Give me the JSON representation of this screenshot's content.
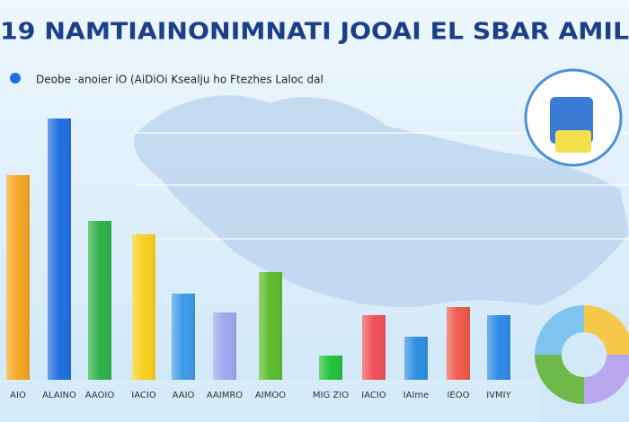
{
  "chart_data": {
    "type": "bar",
    "title": "19 NAMTIAINONIMNATI JOOAI EL SBAR AMIL",
    "subtitle": "Deobe ·anoier iO (AiDiOi Ksealju ho Ftezhes Laloc dal",
    "categories": [
      "AIO",
      "ALAINO",
      "AAOIO",
      "IACIO",
      "AAIO",
      "AAIMRO",
      "AIMOO",
      "MIG ZIO",
      "IACIO",
      "IAIme",
      "IEOO",
      "IVMIY"
    ],
    "values": [
      76,
      97,
      59,
      54,
      32,
      25,
      40,
      9,
      24,
      16,
      27,
      24
    ],
    "colors": [
      "#f5a623",
      "#1f6fe0",
      "#2fb04a",
      "#f7d020",
      "#3c9ae8",
      "#9fa7f0",
      "#5cbc2e",
      "#22c23a",
      "#f0505a",
      "#2f8fe0",
      "#ee5a4a",
      "#2e8ae6"
    ],
    "ylim": [
      0,
      100
    ]
  }
}
